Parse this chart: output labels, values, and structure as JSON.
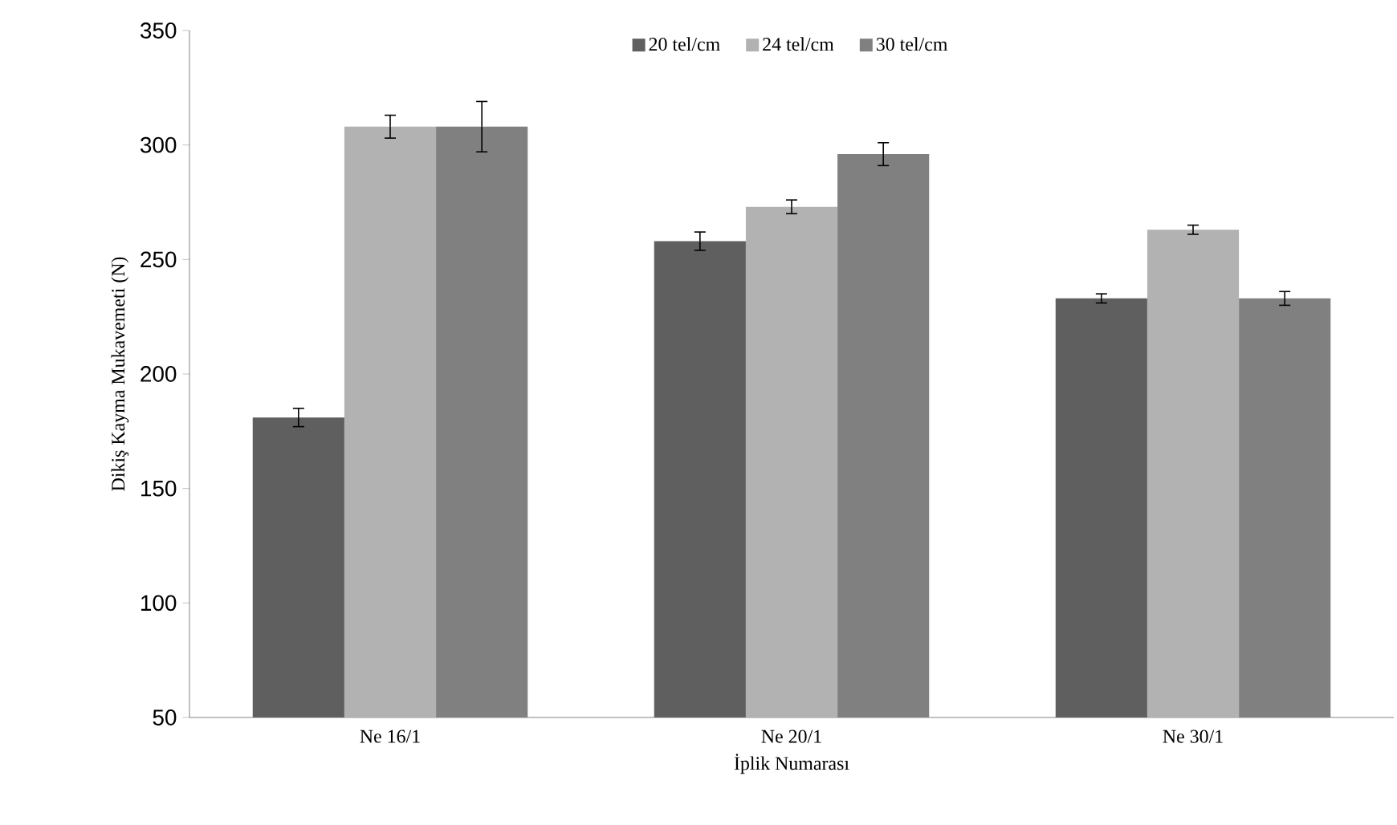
{
  "chart_data": {
    "type": "bar",
    "xlabel": "İplik Numarası",
    "ylabel": "Dikiş Kayma Mukavemeti (N)",
    "categories": [
      "Ne 16/1",
      "Ne 20/1",
      "Ne 30/1"
    ],
    "series": [
      {
        "name": "20 tel/cm",
        "color": "#5f5f5f",
        "values": [
          181,
          258,
          233
        ],
        "errors": [
          4,
          4,
          2
        ]
      },
      {
        "name": "24 tel/cm",
        "color": "#b2b2b2",
        "values": [
          308,
          273,
          263
        ],
        "errors": [
          5,
          3,
          2
        ]
      },
      {
        "name": "30 tel/cm",
        "color": "#808080",
        "values": [
          308,
          296,
          233
        ],
        "errors": [
          11,
          5,
          3
        ]
      }
    ],
    "ylim": [
      50,
      350
    ],
    "yticks": [
      50,
      100,
      150,
      200,
      250,
      300,
      350
    ],
    "grid": false,
    "legend": "top"
  }
}
